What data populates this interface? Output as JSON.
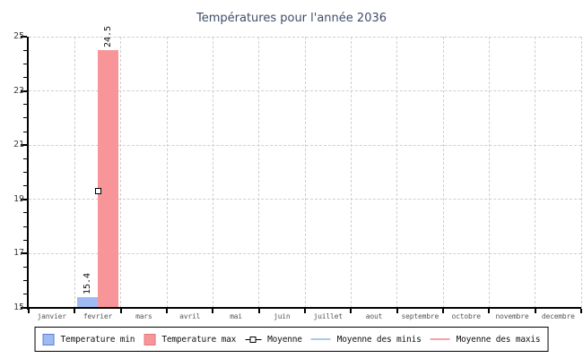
{
  "chart_data": {
    "type": "bar",
    "title": "Températures pour l'année 2036",
    "categories": [
      "janvier",
      "fevrier",
      "mars",
      "avril",
      "mai",
      "juin",
      "juillet",
      "aout",
      "septembre",
      "octobre",
      "novembre",
      "decembre"
    ],
    "ylim": [
      15,
      25
    ],
    "yticks": [
      15,
      17,
      19,
      21,
      23,
      25
    ],
    "minor_tick_step": 0.5,
    "grid": "dashed",
    "legend_position": "bottom",
    "series": [
      {
        "name": "Temperature min",
        "type": "bar",
        "color": "#9dbbf2",
        "border": "#5d7fd0",
        "values": [
          null,
          15.4,
          null,
          null,
          null,
          null,
          null,
          null,
          null,
          null,
          null,
          null
        ]
      },
      {
        "name": "Temperature max",
        "type": "bar",
        "color": "#f89598",
        "border": "#df7b7f",
        "values": [
          null,
          24.5,
          null,
          null,
          null,
          null,
          null,
          null,
          null,
          null,
          null,
          null
        ]
      },
      {
        "name": "Moyenne",
        "type": "point",
        "color": "#000000",
        "values": [
          null,
          19.3,
          null,
          null,
          null,
          null,
          null,
          null,
          null,
          null,
          null,
          null
        ]
      },
      {
        "name": "Moyenne des minis",
        "type": "line",
        "color": "#aac7f0",
        "values": []
      },
      {
        "name": "Moyenne des maxis",
        "type": "line",
        "color": "#f5a3a6",
        "values": []
      }
    ],
    "bar_value_labels": [
      {
        "series": 0,
        "category": 1,
        "text": "15.4"
      },
      {
        "series": 1,
        "category": 1,
        "text": "24.5"
      }
    ]
  },
  "colors": {
    "title": "#3f4d68",
    "axis": "#000000",
    "grid": "#cfcfcf",
    "y_tick_label": "#3c3c3c",
    "month_label": "#555555",
    "background": "#ffffff"
  }
}
